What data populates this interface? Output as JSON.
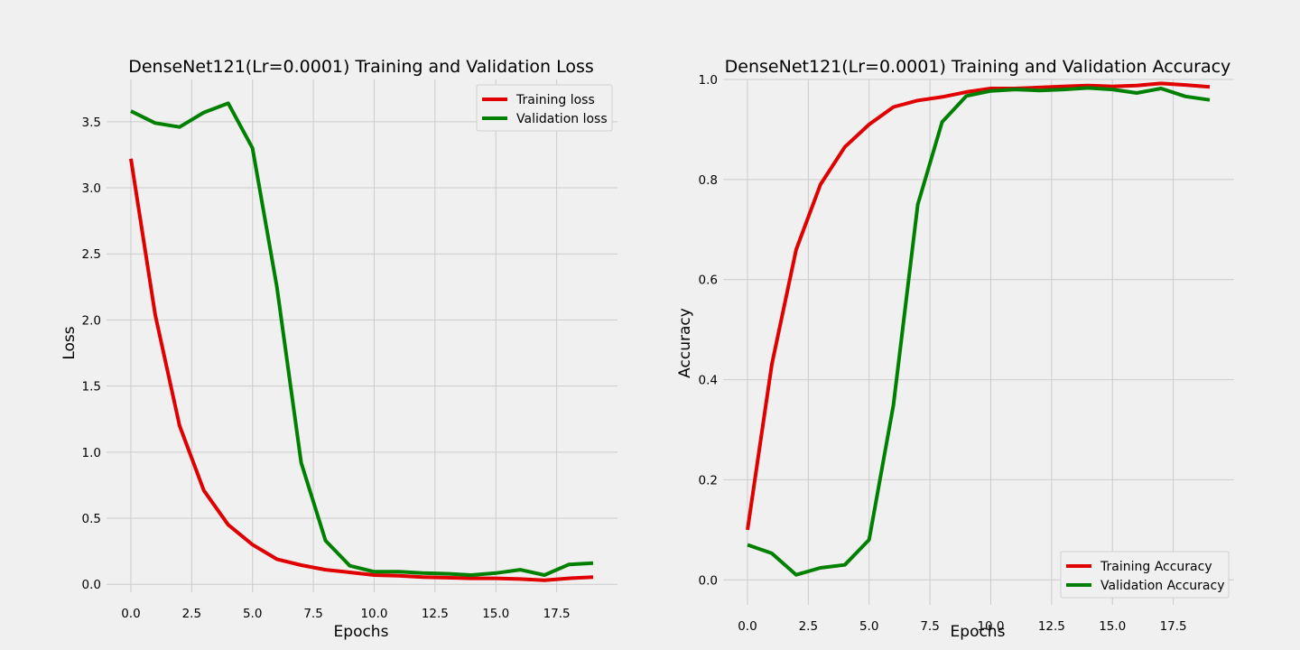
{
  "chart_data": [
    {
      "type": "line",
      "title": "DenseNet121(Lr=0.0001) Training and Validation Loss",
      "xlabel": "Epochs",
      "ylabel": "Loss",
      "x": [
        0,
        1,
        2,
        3,
        4,
        5,
        6,
        7,
        8,
        9,
        10,
        11,
        12,
        13,
        14,
        15,
        16,
        17,
        18,
        19
      ],
      "xlim": [
        -1,
        20
      ],
      "ylim": [
        -0.06,
        3.82
      ],
      "xticks": [
        0.0,
        2.5,
        5.0,
        7.5,
        10.0,
        12.5,
        15.0,
        17.5
      ],
      "xtick_labels": [
        "0.0",
        "2.5",
        "5.0",
        "7.5",
        "10.0",
        "12.5",
        "15.0",
        "17.5"
      ],
      "yticks": [
        0.0,
        0.5,
        1.0,
        1.5,
        2.0,
        2.5,
        3.0,
        3.5
      ],
      "ytick_labels": [
        "0.0",
        "0.5",
        "1.0",
        "1.5",
        "2.0",
        "2.5",
        "3.0",
        "3.5"
      ],
      "grid": true,
      "legend_position": "top-right",
      "series": [
        {
          "name": "Training loss",
          "color": "#e00000",
          "values": [
            3.22,
            2.04,
            1.2,
            0.71,
            0.45,
            0.3,
            0.19,
            0.145,
            0.11,
            0.09,
            0.07,
            0.065,
            0.055,
            0.05,
            0.045,
            0.045,
            0.04,
            0.03,
            0.045,
            0.055
          ]
        },
        {
          "name": "Validation loss",
          "color": "#008000",
          "values": [
            3.58,
            3.49,
            3.46,
            3.57,
            3.64,
            3.3,
            2.25,
            0.92,
            0.33,
            0.14,
            0.095,
            0.095,
            0.085,
            0.08,
            0.07,
            0.085,
            0.11,
            0.07,
            0.15,
            0.16
          ]
        }
      ]
    },
    {
      "type": "line",
      "title": "DenseNet121(Lr=0.0001) Training and Validation Accuracy",
      "xlabel": "Epochs",
      "ylabel": "Accuracy",
      "x": [
        0,
        1,
        2,
        3,
        4,
        5,
        6,
        7,
        8,
        9,
        10,
        11,
        12,
        13,
        14,
        15,
        16,
        17,
        18,
        19
      ],
      "xlim": [
        -1,
        20
      ],
      "ylim": [
        -0.05,
        1.0
      ],
      "xticks": [
        0.0,
        2.5,
        5.0,
        7.5,
        10.0,
        12.5,
        15.0,
        17.5
      ],
      "xtick_labels": [
        "0.0",
        "2.5",
        "5.0",
        "7.5",
        "10.0",
        "12.5",
        "15.0",
        "17.5"
      ],
      "yticks": [
        0.0,
        0.2,
        0.4,
        0.6,
        0.8,
        1.0
      ],
      "ytick_labels": [
        "0.0",
        "0.2",
        "0.4",
        "0.6",
        "0.8",
        "1.0"
      ],
      "grid": true,
      "legend_position": "bottom-right",
      "series": [
        {
          "name": "Training Accuracy",
          "color": "#e00000",
          "values": [
            0.1,
            0.43,
            0.66,
            0.79,
            0.865,
            0.91,
            0.945,
            0.958,
            0.965,
            0.975,
            0.982,
            0.982,
            0.984,
            0.986,
            0.988,
            0.986,
            0.988,
            0.992,
            0.989,
            0.985
          ]
        },
        {
          "name": "Validation Accuracy",
          "color": "#008000",
          "values": [
            0.07,
            0.053,
            0.01,
            0.024,
            0.03,
            0.08,
            0.35,
            0.75,
            0.915,
            0.967,
            0.977,
            0.98,
            0.978,
            0.98,
            0.983,
            0.98,
            0.973,
            0.982,
            0.966,
            0.959
          ]
        }
      ]
    }
  ]
}
